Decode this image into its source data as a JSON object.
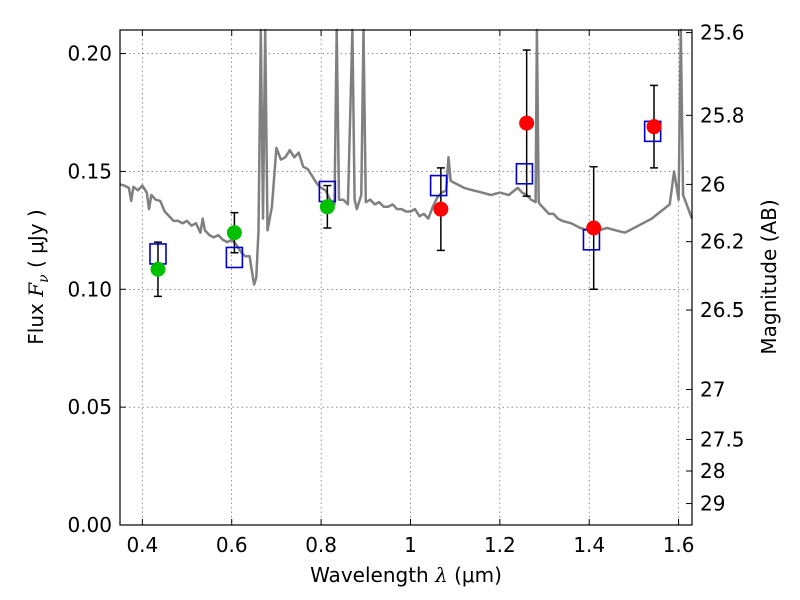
{
  "chart_data": {
    "type": "scatter",
    "xlabel": {
      "text": "Wavelength",
      "symbol": "λ",
      "unit": "(μm)"
    },
    "ylabel": {
      "text": "Flux",
      "symbol": "F",
      "subscript": "ν",
      "unit": "( μJy )"
    },
    "ylabel_right": "Magnitude (AB)",
    "xlim": [
      0.35,
      1.63
    ],
    "ylim": [
      0.0,
      0.21
    ],
    "xticks": [
      0.4,
      0.6,
      0.8,
      1.0,
      1.2,
      1.4,
      1.6
    ],
    "xtick_labels": [
      "0.4",
      "0.6",
      "0.8",
      "1",
      "1.2",
      "1.4",
      "1.6"
    ],
    "yticks": [
      0.0,
      0.05,
      0.1,
      0.15,
      0.2
    ],
    "ytick_labels": [
      "0.00",
      "0.05",
      "0.10",
      "0.15",
      "0.20"
    ],
    "right_ticks": [
      {
        "label": "25.6",
        "flux": 0.2089
      },
      {
        "label": "25.8",
        "flux": 0.1738
      },
      {
        "label": "26",
        "flux": 0.1445
      },
      {
        "label": "26.2",
        "flux": 0.1202
      },
      {
        "label": "26.5",
        "flux": 0.0912
      },
      {
        "label": "27",
        "flux": 0.0575
      },
      {
        "label": "27.5",
        "flux": 0.0363
      },
      {
        "label": "28",
        "flux": 0.0229
      },
      {
        "label": "29",
        "flux": 0.0091
      }
    ],
    "grid": true,
    "colors": {
      "model": "#808080",
      "green": "#00c000",
      "red": "#ff0000",
      "square": "#0000cc",
      "errorbar": "#000000"
    },
    "series": [
      {
        "kind": "green-points",
        "points": [
          {
            "x": 0.435,
            "y": 0.1085,
            "err": 0.0115
          },
          {
            "x": 0.606,
            "y": 0.124,
            "err": 0.0085
          },
          {
            "x": 0.814,
            "y": 0.135,
            "err": 0.009
          }
        ]
      },
      {
        "kind": "red-points",
        "points": [
          {
            "x": 1.068,
            "y": 0.134,
            "err": 0.0175
          },
          {
            "x": 1.26,
            "y": 0.1705,
            "err": 0.031
          },
          {
            "x": 1.41,
            "y": 0.126,
            "err": 0.026
          },
          {
            "x": 1.545,
            "y": 0.169,
            "err": 0.0175
          }
        ]
      },
      {
        "kind": "model-photometry",
        "points": [
          {
            "x": 0.435,
            "y": 0.115
          },
          {
            "x": 0.606,
            "y": 0.1135
          },
          {
            "x": 0.814,
            "y": 0.1415
          },
          {
            "x": 1.063,
            "y": 0.144
          },
          {
            "x": 1.255,
            "y": 0.149
          },
          {
            "x": 1.405,
            "y": 0.121
          },
          {
            "x": 1.542,
            "y": 0.167
          }
        ]
      },
      {
        "kind": "model-spectrum",
        "points": [
          [
            0.35,
            0.1445
          ],
          [
            0.36,
            0.144
          ],
          [
            0.37,
            0.143
          ],
          [
            0.375,
            0.1375
          ],
          [
            0.38,
            0.1435
          ],
          [
            0.39,
            0.142
          ],
          [
            0.4,
            0.144
          ],
          [
            0.41,
            0.141
          ],
          [
            0.415,
            0.134
          ],
          [
            0.42,
            0.14
          ],
          [
            0.43,
            0.138
          ],
          [
            0.44,
            0.1375
          ],
          [
            0.45,
            0.133
          ],
          [
            0.46,
            0.131
          ],
          [
            0.47,
            0.129
          ],
          [
            0.48,
            0.129
          ],
          [
            0.49,
            0.128
          ],
          [
            0.5,
            0.129
          ],
          [
            0.51,
            0.127
          ],
          [
            0.52,
            0.128
          ],
          [
            0.53,
            0.124
          ],
          [
            0.535,
            0.13
          ],
          [
            0.54,
            0.125
          ],
          [
            0.55,
            0.123
          ],
          [
            0.56,
            0.122
          ],
          [
            0.57,
            0.123
          ],
          [
            0.58,
            0.121
          ],
          [
            0.59,
            0.12
          ],
          [
            0.6,
            0.121
          ],
          [
            0.61,
            0.119
          ],
          [
            0.62,
            0.116
          ],
          [
            0.63,
            0.114
          ],
          [
            0.64,
            0.114
          ],
          [
            0.645,
            0.108
          ],
          [
            0.65,
            0.102
          ],
          [
            0.655,
            0.105
          ],
          [
            0.66,
            0.125
          ],
          [
            0.665,
            0.21
          ],
          [
            0.67,
            0.13
          ],
          [
            0.675,
            0.21
          ],
          [
            0.68,
            0.125
          ],
          [
            0.69,
            0.135
          ],
          [
            0.7,
            0.16
          ],
          [
            0.71,
            0.155
          ],
          [
            0.72,
            0.156
          ],
          [
            0.73,
            0.159
          ],
          [
            0.74,
            0.156
          ],
          [
            0.75,
            0.158
          ],
          [
            0.76,
            0.152
          ],
          [
            0.77,
            0.151
          ],
          [
            0.78,
            0.148
          ],
          [
            0.79,
            0.145
          ],
          [
            0.8,
            0.143
          ],
          [
            0.81,
            0.142
          ],
          [
            0.82,
            0.138
          ],
          [
            0.83,
            0.136
          ],
          [
            0.835,
            0.21
          ],
          [
            0.84,
            0.138
          ],
          [
            0.85,
            0.138
          ],
          [
            0.86,
            0.136
          ],
          [
            0.87,
            0.21
          ],
          [
            0.875,
            0.138
          ],
          [
            0.88,
            0.134
          ],
          [
            0.89,
            0.14
          ],
          [
            0.895,
            0.21
          ],
          [
            0.9,
            0.137
          ],
          [
            0.91,
            0.138
          ],
          [
            0.92,
            0.136
          ],
          [
            0.93,
            0.137
          ],
          [
            0.94,
            0.135
          ],
          [
            0.95,
            0.135
          ],
          [
            0.96,
            0.136
          ],
          [
            0.97,
            0.134
          ],
          [
            0.98,
            0.134
          ],
          [
            0.99,
            0.133
          ],
          [
            1.0,
            0.133
          ],
          [
            1.01,
            0.134
          ],
          [
            1.02,
            0.131
          ],
          [
            1.03,
            0.132
          ],
          [
            1.04,
            0.13
          ],
          [
            1.05,
            0.135
          ],
          [
            1.06,
            0.139
          ],
          [
            1.07,
            0.141
          ],
          [
            1.08,
            0.142
          ],
          [
            1.085,
            0.156
          ],
          [
            1.09,
            0.146
          ],
          [
            1.1,
            0.145
          ],
          [
            1.12,
            0.143
          ],
          [
            1.14,
            0.142
          ],
          [
            1.16,
            0.141
          ],
          [
            1.18,
            0.14
          ],
          [
            1.2,
            0.141
          ],
          [
            1.22,
            0.14
          ],
          [
            1.24,
            0.143
          ],
          [
            1.25,
            0.141
          ],
          [
            1.26,
            0.14
          ],
          [
            1.27,
            0.138
          ],
          [
            1.28,
            0.137
          ],
          [
            1.283,
            0.21
          ],
          [
            1.287,
            0.137
          ],
          [
            1.29,
            0.136
          ],
          [
            1.3,
            0.134
          ],
          [
            1.31,
            0.132
          ],
          [
            1.32,
            0.132
          ],
          [
            1.33,
            0.13
          ],
          [
            1.34,
            0.129
          ],
          [
            1.36,
            0.128
          ],
          [
            1.38,
            0.126
          ],
          [
            1.4,
            0.125
          ],
          [
            1.42,
            0.125
          ],
          [
            1.44,
            0.126
          ],
          [
            1.46,
            0.125
          ],
          [
            1.48,
            0.124
          ],
          [
            1.5,
            0.126
          ],
          [
            1.52,
            0.128
          ],
          [
            1.54,
            0.13
          ],
          [
            1.56,
            0.133
          ],
          [
            1.58,
            0.136
          ],
          [
            1.59,
            0.15
          ],
          [
            1.6,
            0.138
          ],
          [
            1.605,
            0.21
          ],
          [
            1.61,
            0.14
          ],
          [
            1.62,
            0.135
          ],
          [
            1.63,
            0.13
          ]
        ]
      }
    ]
  }
}
